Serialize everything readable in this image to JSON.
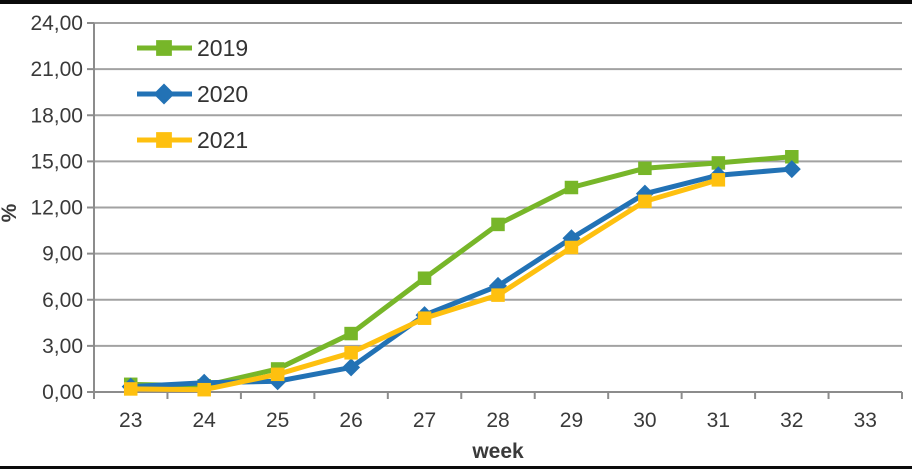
{
  "page": {
    "background_color": "#ffffff",
    "top_border_color": "#0a0a0a",
    "bottom_border_color": "#0a0a0a"
  },
  "chart_data": {
    "type": "line",
    "title": "",
    "xlabel": "week",
    "ylabel": "%",
    "x": [
      23,
      24,
      25,
      26,
      27,
      28,
      29,
      30,
      31,
      32,
      33
    ],
    "series": [
      {
        "name": "2019",
        "color": "#77b629",
        "marker": "square",
        "values": [
          0.5,
          0.4,
          1.5,
          3.8,
          7.4,
          10.9,
          13.3,
          14.55,
          14.9,
          15.3,
          null
        ]
      },
      {
        "name": "2020",
        "color": "#2272b5",
        "marker": "diamond",
        "values": [
          0.35,
          0.6,
          0.7,
          1.6,
          5.0,
          6.9,
          10.0,
          12.9,
          14.1,
          14.5,
          null
        ]
      },
      {
        "name": "2021",
        "color": "#fec00f",
        "marker": "square",
        "values": [
          0.2,
          0.15,
          1.15,
          2.55,
          4.8,
          6.3,
          9.4,
          12.4,
          13.8,
          null,
          null
        ]
      }
    ],
    "ylim": [
      0,
      24
    ],
    "ytick_step": 3,
    "ytick_labels": [
      "0,00",
      "3,00",
      "6,00",
      "9,00",
      "12,00",
      "15,00",
      "18,00",
      "21,00",
      "24,00"
    ],
    "grid": true,
    "legend_position": "top-left-inside",
    "legend_entries": [
      "2019",
      "2020",
      "2021"
    ],
    "colors": {
      "gridline": "#a2a2a2",
      "axis": "#8c8c8c",
      "tick_text": "#3a3a3a",
      "legend_text": "#333333"
    }
  }
}
